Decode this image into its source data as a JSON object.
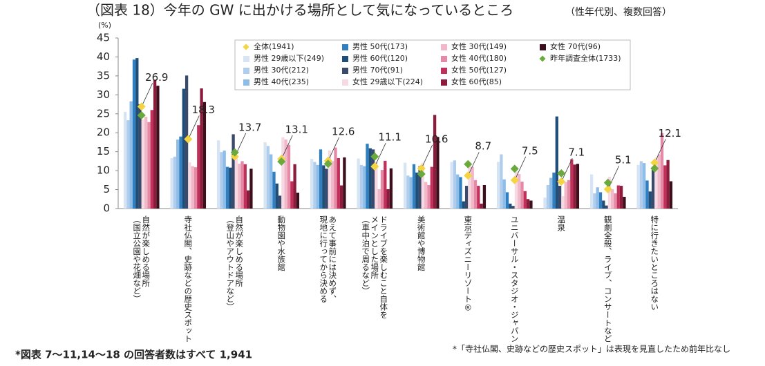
{
  "chart_data": {
    "type": "bar",
    "title": "（図表 18）今年の GW に出かける場所として気になっているところ",
    "subtitle": "（性年代別、複数回答）",
    "y_label": "(%)",
    "ylim": [
      0,
      45
    ],
    "yticks": [
      0,
      5,
      10,
      15,
      20,
      25,
      30,
      35,
      40,
      45
    ],
    "categories": [
      [
        "自然が楽しめる場所",
        "（国立公園や花畑など）"
      ],
      [
        "寺社仏閣、史跡などの歴史スポット"
      ],
      [
        "自然が楽しめる場所",
        "（登山やアウトドアなど）"
      ],
      [
        "動物園や水族館"
      ],
      [
        "あえて事前には決めず、",
        "現地に行ってから決める"
      ],
      [
        "ドライブを楽しむこと自体を",
        "メインとした場所",
        "（車中泊で周るなど）"
      ],
      [
        "美術館や博物館"
      ],
      [
        "東京ディズニーリゾート®"
      ],
      [
        "ユニバーサル・スタジオ・ジャパン"
      ],
      [
        "温泉"
      ],
      [
        "観劇全般、ライブ、コンサートなど"
      ],
      [
        "特に行きたいところはない"
      ]
    ],
    "series": [
      {
        "name": "全体(1941)",
        "kind": "marker",
        "color": "#f5d442",
        "values": [
          26.9,
          18.3,
          13.7,
          13.1,
          12.6,
          11.1,
          10.6,
          8.7,
          7.5,
          7.1,
          5.1,
          12.1
        ],
        "show_labels": true
      },
      {
        "name": "男性 29歳以下(249)",
        "kind": "bar",
        "color": "#d6e4f3",
        "values": [
          25.5,
          13.3,
          18.0,
          17.5,
          13.1,
          13.2,
          12.1,
          12.3,
          12.3,
          2.9,
          9.0,
          11.5
        ]
      },
      {
        "name": "男性 30代(212)",
        "kind": "bar",
        "color": "#b0cdee",
        "values": [
          23.3,
          13.7,
          14.9,
          16.5,
          12.3,
          11.5,
          8.7,
          12.7,
          14.3,
          6.2,
          4.0,
          12.5
        ]
      },
      {
        "name": "男性 40代(235)",
        "kind": "bar",
        "color": "#8ebde8",
        "values": [
          28.3,
          18.2,
          15.3,
          14.3,
          11.5,
          11.2,
          8.3,
          9.0,
          7.7,
          8.1,
          5.6,
          12.0
        ]
      },
      {
        "name": "男性 50代(173)",
        "kind": "bar",
        "color": "#2f7fc1",
        "values": [
          39.3,
          19.0,
          11.0,
          9.7,
          15.6,
          17.1,
          11.7,
          8.3,
          4.3,
          9.5,
          4.3,
          7.4
        ]
      },
      {
        "name": "男性 60代(120)",
        "kind": "bar",
        "color": "#1f4e79",
        "values": [
          39.7,
          31.6,
          10.8,
          6.6,
          11.4,
          15.9,
          9.5,
          1.9,
          1.3,
          24.3,
          2.1,
          4.5
        ]
      },
      {
        "name": "男性 70代(91)",
        "kind": "bar",
        "color": "#3a4a6b",
        "values": [
          27.5,
          35.1,
          19.6,
          3.4,
          10.5,
          15.6,
          11.2,
          6.0,
          0.7,
          6.0,
          0.8,
          11.0
        ]
      },
      {
        "name": "女性 29歳以下(224)",
        "kind": "bar",
        "color": "#f6d9e2",
        "values": [
          23.5,
          12.2,
          13.5,
          18.8,
          15.3,
          12.3,
          12.0,
          11.5,
          9.8,
          3.3,
          8.4,
          13.4
        ]
      },
      {
        "name": "女性 30代(149)",
        "kind": "bar",
        "color": "#f0b8c8",
        "values": [
          24.2,
          11.2,
          11.8,
          18.2,
          12.5,
          5.1,
          7.0,
          11.0,
          9.1,
          7.0,
          5.1,
          14.3
        ]
      },
      {
        "name": "女性 40代(180)",
        "kind": "bar",
        "color": "#e48aa6",
        "values": [
          22.8,
          10.9,
          12.5,
          16.8,
          16.1,
          10.2,
          6.2,
          7.5,
          7.1,
          7.5,
          4.0,
          19.9
        ]
      },
      {
        "name": "女性 50代(127)",
        "kind": "bar",
        "color": "#c0305a",
        "values": [
          26.0,
          22.0,
          11.7,
          7.2,
          13.3,
          12.6,
          11.0,
          6.0,
          4.6,
          13.0,
          6.1,
          11.4
        ]
      },
      {
        "name": "女性 60代(85)",
        "kind": "bar",
        "color": "#8b1c3c",
        "values": [
          34.0,
          31.7,
          4.8,
          11.7,
          6.1,
          5.1,
          24.7,
          1.3,
          2.5,
          11.6,
          6.0,
          12.8
        ]
      },
      {
        "name": "女性 70代(96)",
        "kind": "bar",
        "color": "#3d0f1c",
        "values": [
          32.4,
          28.1,
          10.5,
          4.2,
          13.5,
          10.6,
          18.9,
          6.2,
          2.1,
          11.8,
          3.1,
          7.2
        ]
      },
      {
        "name": "昨年調査全体(1733)",
        "kind": "marker",
        "color": "#6aaa3c",
        "values": [
          24.6,
          null,
          14.8,
          12.4,
          11.8,
          13.7,
          9.1,
          11.7,
          10.5,
          9.3,
          6.8,
          10.6
        ]
      }
    ],
    "notes": [
      "*図表 7～11,14～18 の回答者数はすべて 1,941",
      "*「寺社仏閣、史跡などの歴史スポット」は表現を見直したため前年比なし"
    ]
  }
}
